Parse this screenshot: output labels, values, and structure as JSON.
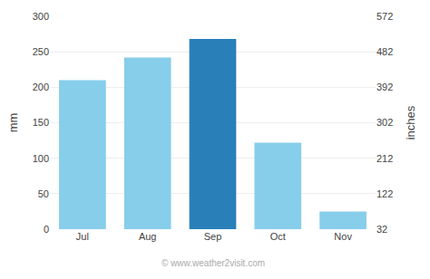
{
  "chart_data": {
    "type": "bar",
    "categories": [
      "Jul",
      "Aug",
      "Sep",
      "Oct",
      "Nov"
    ],
    "values": [
      210,
      242,
      268,
      122,
      25
    ],
    "colors": [
      "#87CEEB",
      "#87CEEB",
      "#2980B9",
      "#87CEEB",
      "#87CEEB"
    ],
    "ylabel": "mm",
    "y2label": "inches",
    "ylim": [
      0,
      300
    ],
    "yticks": [
      0,
      50,
      100,
      150,
      200,
      250,
      300
    ],
    "y2lim": [
      32,
      572
    ],
    "y2ticks": [
      32,
      122,
      212,
      302,
      392,
      482,
      572
    ],
    "grid": true,
    "annotations": [
      "© www.weather2visit.com"
    ]
  }
}
